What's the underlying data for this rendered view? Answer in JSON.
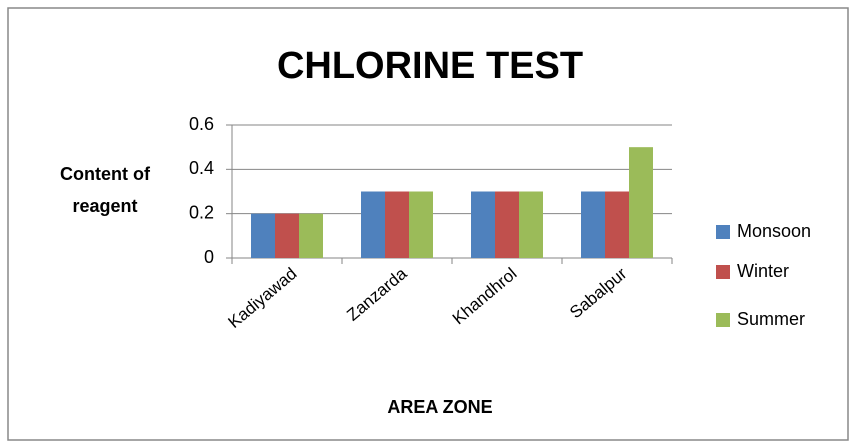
{
  "chart_data": {
    "type": "bar",
    "title": "CHLORINE TEST",
    "y_label": [
      "Content of",
      "reagent"
    ],
    "x_label": "AREA ZONE",
    "categories": [
      "Kadiyawad",
      "Zanzarda",
      "Khandhrol",
      "Sabalpur"
    ],
    "series": [
      {
        "name": "Monsoon",
        "color": "#4f81bd",
        "values": [
          0.2,
          0.3,
          0.3,
          0.3
        ]
      },
      {
        "name": "Winter",
        "color": "#c0504d",
        "values": [
          0.2,
          0.3,
          0.3,
          0.3
        ]
      },
      {
        "name": "Summer",
        "color": "#9bbb59",
        "values": [
          0.2,
          0.3,
          0.3,
          0.5
        ]
      }
    ],
    "ylim": [
      0,
      0.6
    ],
    "yticks": [
      0,
      0.2,
      0.4,
      0.6
    ],
    "grid": true,
    "legend": "right"
  }
}
